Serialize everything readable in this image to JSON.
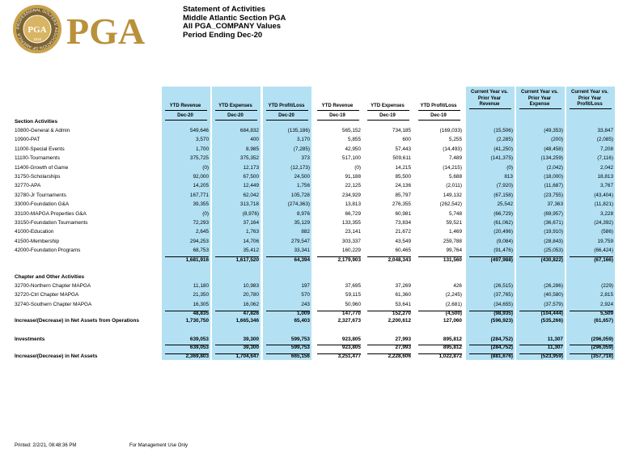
{
  "header": {
    "logo": {
      "wordmark": "PGA",
      "seal_ring": "PROFESSIONAL GOLFERS' ASSOCIATION OF AMERICA",
      "seal_center": "PGA",
      "seal_year": "1916"
    },
    "lines": [
      "Statement of Activities",
      "Middle Atlantic Section PGA",
      "All PGA_COMPANY Values",
      "Period Ending Dec-20"
    ]
  },
  "table": {
    "columns": [
      [
        "YTD Revenue",
        "Dec-20"
      ],
      [
        "YTD Expenses",
        "Dec-20"
      ],
      [
        "YTD Profit/Loss",
        "Dec-20"
      ],
      [
        "YTD Revenue",
        "Dec-19"
      ],
      [
        "YTD Expenses",
        "Dec-19"
      ],
      [
        "YTD Profit/Loss",
        "Dec-19"
      ],
      [
        "Current Year vs.",
        "Prior Year",
        "Revenue"
      ],
      [
        "Current Year vs.",
        "Prior Year",
        "Expense"
      ],
      [
        "Current Year vs.",
        "Prior Year",
        "Profit/Loss"
      ]
    ],
    "sections": [
      {
        "title": "Section Activities",
        "rows": [
          {
            "label": "10800-General & Admin",
            "values": [
              "549,646",
              "684,832",
              "(135,186)",
              "565,152",
              "734,185",
              "(169,033)",
              "(15,506)",
              "(49,353)",
              "33,847"
            ]
          },
          {
            "label": "10900-PAT",
            "values": [
              "3,570",
              "400",
              "3,170",
              "5,855",
              "600",
              "5,255",
              "(2,285)",
              "(200)",
              "(2,085)"
            ]
          },
          {
            "label": "11000-Special Events",
            "values": [
              "1,700",
              "8,985",
              "(7,285)",
              "42,950",
              "57,443",
              "(14,493)",
              "(41,250)",
              "(48,458)",
              "7,208"
            ]
          },
          {
            "label": "11100-Tournaments",
            "values": [
              "375,725",
              "375,352",
              "373",
              "517,100",
              "509,611",
              "7,489",
              "(141,375)",
              "(134,259)",
              "(7,116)"
            ]
          },
          {
            "label": "11400-Growth of Game",
            "values": [
              "(0)",
              "12,173",
              "(12,173)",
              "(0)",
              "14,215",
              "(14,215)",
              "(0)",
              "(2,042)",
              "2,042"
            ]
          },
          {
            "label": "31750-Scholarships",
            "values": [
              "92,000",
              "67,500",
              "24,500",
              "91,188",
              "85,500",
              "5,688",
              "813",
              "(18,000)",
              "18,813"
            ]
          },
          {
            "label": "32770-APA",
            "values": [
              "14,205",
              "12,449",
              "1,756",
              "22,125",
              "24,136",
              "(2,011)",
              "(7,920)",
              "(11,687)",
              "3,767"
            ]
          },
          {
            "label": "32780-Jr Tournaments",
            "values": [
              "167,771",
              "62,042",
              "105,728",
              "234,929",
              "85,797",
              "149,132",
              "(67,158)",
              "(23,755)",
              "(43,404)"
            ]
          },
          {
            "label": "33000-Foundation G&A",
            "values": [
              "39,355",
              "313,718",
              "(274,363)",
              "13,813",
              "276,355",
              "(262,542)",
              "25,542",
              "37,363",
              "(11,821)"
            ]
          },
          {
            "label": "33100-MAPGA Properties G&A",
            "values": [
              "(0)",
              "(8,976)",
              "8,976",
              "66,729",
              "60,981",
              "5,748",
              "(66,729)",
              "(69,957)",
              "3,228"
            ]
          },
          {
            "label": "33150-Foundation Tournaments",
            "values": [
              "72,293",
              "37,164",
              "35,129",
              "133,355",
              "73,834",
              "59,521",
              "(61,062)",
              "(36,671)",
              "(24,392)"
            ]
          },
          {
            "label": "41000-Education",
            "values": [
              "2,645",
              "1,763",
              "882",
              "23,141",
              "21,672",
              "1,469",
              "(20,496)",
              "(19,910)",
              "(586)"
            ]
          },
          {
            "label": "41500-Membership",
            "values": [
              "294,253",
              "14,706",
              "279,547",
              "303,337",
              "43,549",
              "259,788",
              "(9,084)",
              "(28,843)",
              "19,759"
            ]
          },
          {
            "label": "42000-Foundation Programs",
            "values": [
              "68,753",
              "35,412",
              "33,341",
              "160,229",
              "60,465",
              "99,764",
              "(91,476)",
              "(25,053)",
              "(66,424)"
            ]
          }
        ],
        "total": [
          "1,681,916",
          "1,617,520",
          "64,394",
          "2,179,903",
          "2,048,343",
          "131,560",
          "(497,988)",
          "(430,822)",
          "(67,166)"
        ]
      },
      {
        "title": "Chapter and Other Activities",
        "rows": [
          {
            "label": "32700-Northern Chapter MAPGA",
            "values": [
              "11,180",
              "10,983",
              "197",
              "37,695",
              "37,269",
              "426",
              "(26,515)",
              "(26,286)",
              "(229)"
            ]
          },
          {
            "label": "32720-Ctrl Chapter MAPGA",
            "values": [
              "21,350",
              "20,780",
              "570",
              "59,115",
              "61,360",
              "(2,245)",
              "(37,765)",
              "(40,580)",
              "2,815"
            ]
          },
          {
            "label": "32740-Southern Chapter MAPGA",
            "values": [
              "16,305",
              "16,062",
              "243",
              "50,960",
              "53,641",
              "(2,681)",
              "(34,655)",
              "(37,579)",
              "2,924"
            ]
          }
        ],
        "total": [
          "48,835",
          "47,826",
          "1,009",
          "147,770",
          "152,270",
          "(4,500)",
          "(98,935)",
          "(104,444)",
          "5,509"
        ]
      }
    ],
    "operations": {
      "label": "Increase/(Decrease) in Net Assets from Operations",
      "values": [
        "1,730,750",
        "1,665,346",
        "65,403",
        "2,327,673",
        "2,200,612",
        "127,060",
        "(596,923)",
        "(535,266)",
        "(61,657)"
      ]
    },
    "investments": {
      "label": "Investments",
      "values": [
        "639,053",
        "39,300",
        "599,753",
        "923,805",
        "27,993",
        "895,812",
        "(284,752)",
        "11,307",
        "(296,059)"
      ],
      "subtotal": [
        "639,053",
        "39,300",
        "599,753",
        "923,805",
        "27,993",
        "895,812",
        "(284,752)",
        "11,307",
        "(296,059)"
      ]
    },
    "net": {
      "label": "Increase/(Decrease) in Net Assets",
      "values": [
        "2,369,803",
        "1,704,647",
        "665,156",
        "3,251,477",
        "2,228,606",
        "1,022,872",
        "(881,676)",
        "(523,959)",
        "(357,716)"
      ]
    }
  },
  "footer": {
    "printed": "Printed: 2/2/21, 08:48:36 PM",
    "note": "For Management Use Only"
  }
}
